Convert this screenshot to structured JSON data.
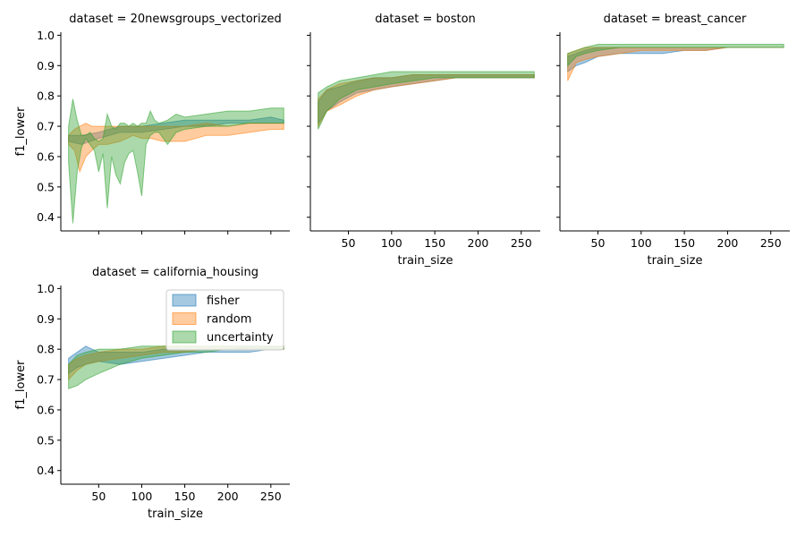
{
  "chart_data": {
    "type": "area",
    "facet_label_prefix": "dataset = ",
    "xlabel": "train_size",
    "ylabel": "f1_lower",
    "ylim": [
      0.355,
      1.01
    ],
    "yticks": [
      0.4,
      0.5,
      0.6,
      0.7,
      0.8,
      0.9,
      1.0
    ],
    "ytick_labels": [
      "0.4",
      "0.5",
      "0.6",
      "0.7",
      "0.8",
      "0.9",
      "1.0"
    ],
    "xlim": [
      6,
      272
    ],
    "xticks": [
      50,
      100,
      150,
      200,
      250
    ],
    "xtick_labels": [
      "50",
      "100",
      "150",
      "200",
      "250"
    ],
    "legend": {
      "placement": "inside-upper-right",
      "entries": [
        "fisher",
        "random",
        "uncertainty"
      ]
    },
    "series_colors": {
      "fisher": "#1f77b4",
      "random": "#ff7f0e",
      "uncertainty": "#2ca02c"
    },
    "panels": [
      {
        "dataset": "20newsgroups_vectorized",
        "series": [
          {
            "name": "fisher",
            "x": [
              15,
              30,
              50,
              75,
              100,
              125,
              150,
              175,
              200,
              225,
              250,
              265
            ],
            "lower": [
              0.65,
              0.64,
              0.66,
              0.68,
              0.68,
              0.69,
              0.7,
              0.7,
              0.71,
              0.71,
              0.71,
              0.71
            ],
            "upper": [
              0.67,
              0.67,
              0.68,
              0.7,
              0.7,
              0.71,
              0.72,
              0.72,
              0.72,
              0.72,
              0.73,
              0.72
            ]
          },
          {
            "name": "random",
            "x": [
              15,
              22,
              28,
              35,
              42,
              50,
              60,
              75,
              90,
              100,
              110,
              125,
              150,
              175,
              200,
              225,
              250,
              265
            ],
            "lower": [
              0.64,
              0.62,
              0.55,
              0.6,
              0.62,
              0.64,
              0.64,
              0.65,
              0.67,
              0.66,
              0.66,
              0.65,
              0.65,
              0.67,
              0.67,
              0.68,
              0.69,
              0.69
            ],
            "upper": [
              0.67,
              0.69,
              0.7,
              0.71,
              0.7,
              0.7,
              0.7,
              0.7,
              0.7,
              0.7,
              0.7,
              0.7,
              0.7,
              0.71,
              0.7,
              0.71,
              0.71,
              0.71
            ]
          },
          {
            "name": "uncertainty",
            "x": [
              15,
              20,
              25,
              30,
              35,
              40,
              45,
              50,
              55,
              60,
              65,
              70,
              75,
              80,
              85,
              90,
              95,
              100,
              105,
              110,
              115,
              120,
              130,
              140,
              150,
              175,
              200,
              225,
              250,
              265
            ],
            "lower": [
              0.58,
              0.38,
              0.55,
              0.63,
              0.66,
              0.64,
              0.62,
              0.55,
              0.61,
              0.43,
              0.6,
              0.54,
              0.51,
              0.58,
              0.61,
              0.62,
              0.55,
              0.47,
              0.64,
              0.67,
              0.68,
              0.68,
              0.64,
              0.68,
              0.69,
              0.7,
              0.7,
              0.71,
              0.71,
              0.71
            ],
            "upper": [
              0.7,
              0.79,
              0.72,
              0.67,
              0.67,
              0.68,
              0.66,
              0.65,
              0.66,
              0.74,
              0.7,
              0.69,
              0.71,
              0.71,
              0.7,
              0.71,
              0.7,
              0.71,
              0.71,
              0.75,
              0.72,
              0.71,
              0.72,
              0.74,
              0.73,
              0.74,
              0.75,
              0.75,
              0.76,
              0.76
            ]
          }
        ]
      },
      {
        "dataset": "boston",
        "series": [
          {
            "name": "fisher",
            "x": [
              15,
              25,
              40,
              60,
              80,
              100,
              125,
              150,
              175,
              200,
              225,
              250,
              265
            ],
            "lower": [
              0.71,
              0.75,
              0.78,
              0.81,
              0.82,
              0.83,
              0.84,
              0.85,
              0.86,
              0.86,
              0.86,
              0.86,
              0.86
            ],
            "upper": [
              0.78,
              0.82,
              0.83,
              0.85,
              0.86,
              0.86,
              0.87,
              0.87,
              0.87,
              0.87,
              0.87,
              0.87,
              0.87
            ]
          },
          {
            "name": "random",
            "x": [
              15,
              25,
              40,
              60,
              80,
              100,
              125,
              150,
              175,
              200,
              225,
              250,
              265
            ],
            "lower": [
              0.7,
              0.75,
              0.77,
              0.8,
              0.82,
              0.83,
              0.84,
              0.85,
              0.86,
              0.86,
              0.86,
              0.86,
              0.86
            ],
            "upper": [
              0.79,
              0.82,
              0.84,
              0.85,
              0.86,
              0.86,
              0.87,
              0.87,
              0.87,
              0.87,
              0.87,
              0.87,
              0.87
            ]
          },
          {
            "name": "uncertainty",
            "x": [
              15,
              25,
              40,
              60,
              80,
              100,
              125,
              150,
              175,
              200,
              225,
              250,
              265
            ],
            "lower": [
              0.69,
              0.75,
              0.79,
              0.82,
              0.83,
              0.84,
              0.85,
              0.86,
              0.86,
              0.86,
              0.86,
              0.86,
              0.86
            ],
            "upper": [
              0.81,
              0.83,
              0.85,
              0.86,
              0.87,
              0.88,
              0.88,
              0.88,
              0.88,
              0.88,
              0.88,
              0.88,
              0.88
            ]
          }
        ]
      },
      {
        "dataset": "breast_cancer",
        "series": [
          {
            "name": "fisher",
            "x": [
              15,
              25,
              35,
              50,
              75,
              100,
              125,
              150,
              175,
              200,
              225,
              250,
              265
            ],
            "lower": [
              0.88,
              0.9,
              0.91,
              0.93,
              0.94,
              0.94,
              0.94,
              0.95,
              0.95,
              0.96,
              0.96,
              0.96,
              0.96
            ],
            "upper": [
              0.93,
              0.94,
              0.95,
              0.96,
              0.96,
              0.96,
              0.96,
              0.96,
              0.96,
              0.96,
              0.96,
              0.96,
              0.96
            ]
          },
          {
            "name": "random",
            "x": [
              15,
              25,
              35,
              50,
              75,
              100,
              125,
              150,
              175,
              200,
              225,
              250,
              265
            ],
            "lower": [
              0.85,
              0.91,
              0.92,
              0.93,
              0.94,
              0.95,
              0.95,
              0.95,
              0.95,
              0.96,
              0.96,
              0.96,
              0.96
            ],
            "upper": [
              0.94,
              0.95,
              0.96,
              0.96,
              0.96,
              0.96,
              0.96,
              0.96,
              0.96,
              0.96,
              0.96,
              0.96,
              0.96
            ]
          },
          {
            "name": "uncertainty",
            "x": [
              15,
              25,
              35,
              50,
              75,
              100,
              125,
              150,
              175,
              200,
              225,
              250,
              265
            ],
            "lower": [
              0.9,
              0.93,
              0.94,
              0.95,
              0.96,
              0.96,
              0.96,
              0.96,
              0.96,
              0.96,
              0.96,
              0.96,
              0.96
            ],
            "upper": [
              0.94,
              0.95,
              0.96,
              0.97,
              0.97,
              0.97,
              0.97,
              0.97,
              0.97,
              0.97,
              0.97,
              0.97,
              0.97
            ]
          }
        ]
      },
      {
        "dataset": "california_housing",
        "series": [
          {
            "name": "fisher",
            "x": [
              15,
              25,
              35,
              50,
              75,
              100,
              125,
              150,
              175,
              200,
              225,
              250,
              265
            ],
            "lower": [
              0.72,
              0.74,
              0.75,
              0.76,
              0.75,
              0.76,
              0.77,
              0.78,
              0.79,
              0.79,
              0.79,
              0.8,
              0.8
            ],
            "upper": [
              0.77,
              0.79,
              0.81,
              0.79,
              0.79,
              0.79,
              0.8,
              0.8,
              0.8,
              0.8,
              0.81,
              0.81,
              0.81
            ]
          },
          {
            "name": "random",
            "x": [
              15,
              25,
              35,
              50,
              75,
              100,
              125,
              150,
              175,
              200,
              225,
              250,
              265
            ],
            "lower": [
              0.7,
              0.73,
              0.75,
              0.76,
              0.77,
              0.78,
              0.79,
              0.79,
              0.8,
              0.8,
              0.8,
              0.8,
              0.8
            ],
            "upper": [
              0.75,
              0.77,
              0.78,
              0.79,
              0.8,
              0.8,
              0.81,
              0.81,
              0.81,
              0.81,
              0.81,
              0.81,
              0.81
            ]
          },
          {
            "name": "uncertainty",
            "x": [
              15,
              25,
              35,
              50,
              75,
              100,
              125,
              150,
              175,
              200,
              225,
              250,
              265
            ],
            "lower": [
              0.67,
              0.68,
              0.7,
              0.72,
              0.75,
              0.77,
              0.78,
              0.79,
              0.79,
              0.8,
              0.8,
              0.8,
              0.8
            ],
            "upper": [
              0.75,
              0.78,
              0.79,
              0.8,
              0.8,
              0.81,
              0.81,
              0.81,
              0.81,
              0.81,
              0.81,
              0.81,
              0.81
            ]
          }
        ]
      }
    ]
  }
}
